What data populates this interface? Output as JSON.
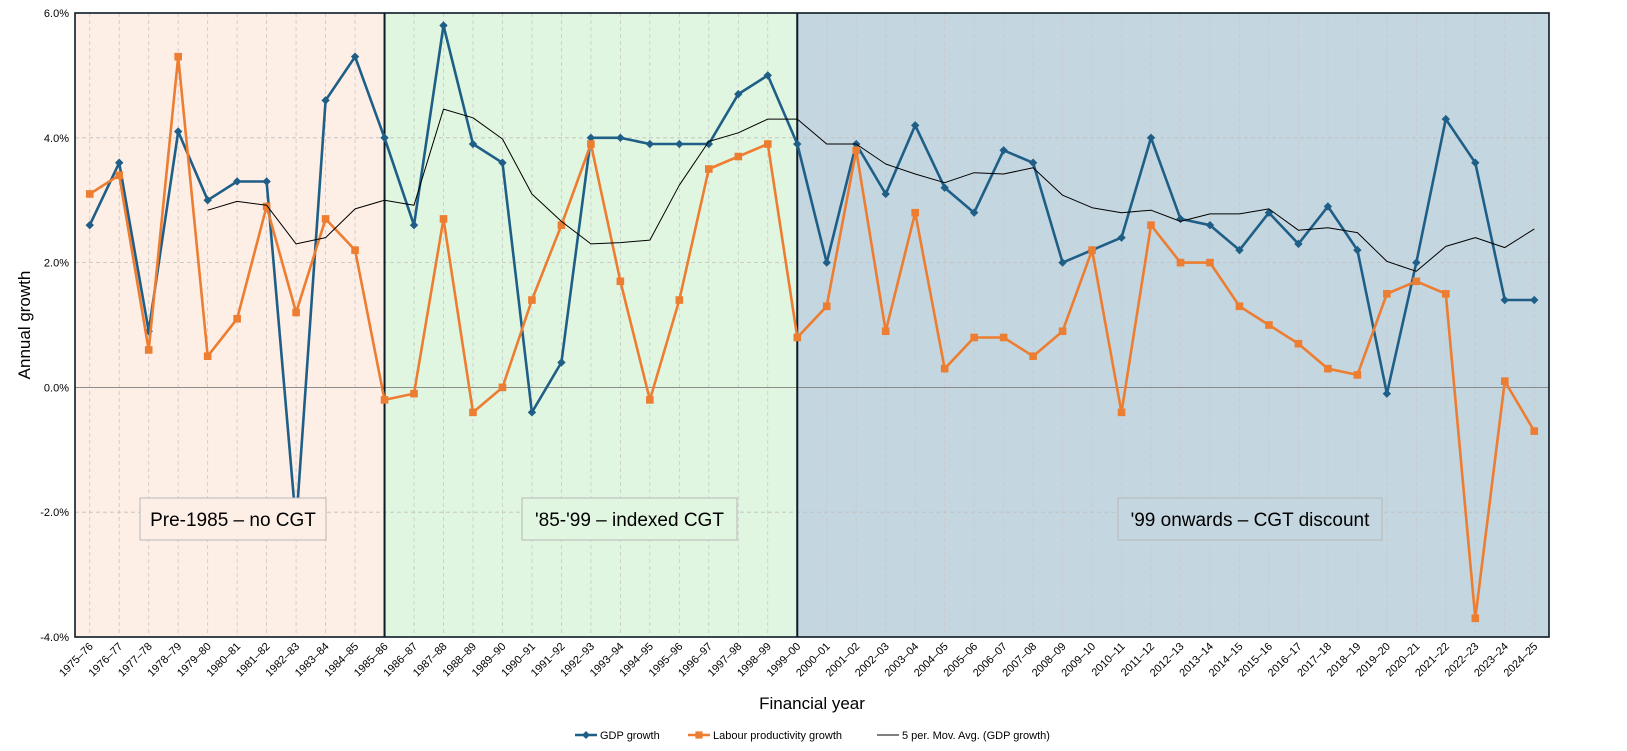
{
  "chart_data": {
    "type": "line",
    "xlabel": "Financial year",
    "ylabel": "Annual growth",
    "ylim": [
      -4,
      6
    ],
    "y_ticks": [
      "-4.0%",
      "-2.0%",
      "0.0%",
      "2.0%",
      "4.0%",
      "6.0%"
    ],
    "grid": true,
    "legend_position": "bottom",
    "categories": [
      "1975–76",
      "1976–77",
      "1977–78",
      "1978–79",
      "1979–80",
      "1980–81",
      "1981–82",
      "1982–83",
      "1983–84",
      "1984–85",
      "1985–86",
      "1986–87",
      "1987–88",
      "1988–89",
      "1989–90",
      "1990–91",
      "1991–92",
      "1992–93",
      "1993–94",
      "1994–95",
      "1995–96",
      "1996–97",
      "1997–98",
      "1998–99",
      "1999–00",
      "2000–01",
      "2001–02",
      "2002–03",
      "2003–04",
      "2004–05",
      "2005–06",
      "2006–07",
      "2007–08",
      "2008–09",
      "2009–10",
      "2010–11",
      "2011–12",
      "2012–13",
      "2013–14",
      "2014–15",
      "2015–16",
      "2016–17",
      "2017–18",
      "2018–19",
      "2019–20",
      "2020–21",
      "2021–22",
      "2022–23",
      "2023–24",
      "2024–25"
    ],
    "series": [
      {
        "name": "GDP growth",
        "color": "#1f5f87",
        "marker": "diamond",
        "values": [
          2.6,
          3.6,
          0.9,
          4.1,
          3.0,
          3.3,
          3.3,
          -2.2,
          4.6,
          5.3,
          4.0,
          2.6,
          5.8,
          3.9,
          3.6,
          -0.4,
          0.4,
          4.0,
          4.0,
          3.9,
          3.9,
          3.9,
          4.7,
          5.0,
          3.9,
          2.0,
          3.9,
          3.1,
          4.2,
          3.2,
          2.8,
          3.8,
          3.6,
          2.0,
          2.2,
          2.4,
          4.0,
          2.7,
          2.6,
          2.2,
          2.8,
          2.3,
          2.9,
          2.2,
          -0.1,
          2.0,
          4.3,
          3.6,
          1.4,
          1.4
        ]
      },
      {
        "name": "Labour productivity growth",
        "color": "#ed7d31",
        "marker": "square",
        "values": [
          3.1,
          3.4,
          0.6,
          5.3,
          0.5,
          1.1,
          2.9,
          1.2,
          2.7,
          2.2,
          -0.2,
          -0.1,
          2.7,
          -0.4,
          0.0,
          1.4,
          2.6,
          3.9,
          1.7,
          -0.2,
          1.4,
          3.5,
          3.7,
          3.9,
          0.8,
          1.3,
          3.8,
          0.9,
          2.8,
          0.3,
          0.8,
          0.8,
          0.5,
          0.9,
          2.2,
          -0.4,
          2.6,
          2.0,
          2.0,
          1.3,
          1.0,
          0.7,
          0.3,
          0.2,
          1.5,
          1.7,
          1.5,
          -3.7,
          0.1,
          -0.7
        ]
      },
      {
        "name": "5 per. Mov. Avg. (GDP growth)",
        "color": "#000000",
        "marker": "none",
        "values": [
          null,
          null,
          null,
          null,
          2.84,
          2.98,
          2.92,
          2.3,
          2.4,
          2.86,
          3.0,
          2.92,
          4.46,
          4.32,
          3.98,
          3.1,
          2.66,
          2.3,
          2.32,
          2.36,
          3.24,
          3.94,
          4.08,
          4.3,
          4.3,
          3.9,
          3.9,
          3.58,
          3.42,
          3.28,
          3.44,
          3.42,
          3.52,
          3.08,
          2.88,
          2.8,
          2.84,
          2.66,
          2.78,
          2.78,
          2.86,
          2.52,
          2.56,
          2.48,
          2.02,
          1.86,
          2.26,
          2.4,
          2.24,
          2.54
        ]
      }
    ],
    "regions": [
      {
        "label": "Pre-1985 – no CGT",
        "start": "1975–76",
        "end": "1985–86",
        "fill": "#fdeee6"
      },
      {
        "label": "'85-'99 – indexed CGT",
        "start": "1985–86",
        "end": "1999–00",
        "fill": "#e1f6e1"
      },
      {
        "label": "'99 onwards – CGT discount",
        "start": "1999–00",
        "end": "2024–25",
        "fill": "#c4d6e0"
      }
    ]
  }
}
